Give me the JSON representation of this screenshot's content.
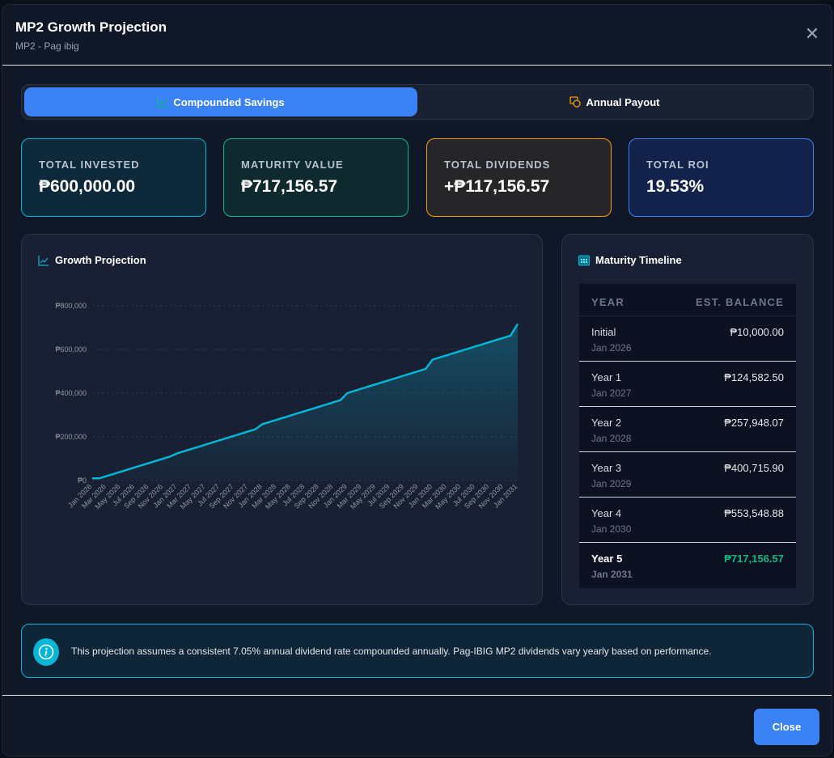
{
  "header": {
    "title": "MP2 Growth Projection",
    "subtitle": "MP2 - Pag ibig",
    "close_icon": "close-icon"
  },
  "tabs": [
    {
      "label": "Compounded Savings",
      "icon": "trending-up-icon",
      "active": true
    },
    {
      "label": "Annual Payout",
      "icon": "coins-icon",
      "active": false
    }
  ],
  "cards": [
    {
      "label": "TOTAL INVESTED",
      "value": "₱600,000.00",
      "color": "#06b6d4"
    },
    {
      "label": "MATURITY VALUE",
      "value": "₱717,156.57",
      "color": "#10b981"
    },
    {
      "label": "TOTAL DIVIDENDS",
      "value": "+₱117,156.57",
      "color": "#f59e0b"
    },
    {
      "label": "TOTAL ROI",
      "value": "19.53%",
      "color": "#3b82f6"
    }
  ],
  "chart_panel": {
    "title": "Growth Projection"
  },
  "chart_data": {
    "type": "area",
    "title": "Growth Projection",
    "ylim": [
      0,
      800000
    ],
    "y_ticks": [
      {
        "v": 0,
        "label": "₱0"
      },
      {
        "v": 200000,
        "label": "₱200,000"
      },
      {
        "v": 400000,
        "label": "₱400,000"
      },
      {
        "v": 600000,
        "label": "₱600,000"
      },
      {
        "v": 800000,
        "label": "₱800,000"
      }
    ],
    "x_labels": [
      "Jan 2026",
      "Mar 2026",
      "May 2026",
      "Jul 2026",
      "Sep 2026",
      "Nov 2026",
      "Jan 2027",
      "Mar 2027",
      "May 2027",
      "Jul 2027",
      "Sep 2027",
      "Nov 2027",
      "Jan 2028",
      "Mar 2028",
      "May 2028",
      "Jul 2028",
      "Sep 2028",
      "Nov 2028",
      "Jan 2029",
      "Mar 2029",
      "May 2029",
      "Jul 2029",
      "Sep 2029",
      "Nov 2029",
      "Jan 2030",
      "Mar 2030",
      "May 2030",
      "Jul 2030",
      "Sep 2030",
      "Nov 2030",
      "Jan 2031"
    ],
    "values": [
      10000,
      10000,
      20000,
      30000,
      40000,
      50000,
      60000,
      70000,
      80000,
      90000,
      100000,
      110000,
      124582.5,
      134582.5,
      144582.5,
      154582.5,
      164582.5,
      174582.5,
      184582.5,
      194582.5,
      204582.5,
      214582.5,
      224582.5,
      234582.5,
      257948.07,
      267948.07,
      277948.07,
      287948.07,
      297948.07,
      307948.07,
      317948.07,
      327948.07,
      337948.07,
      347948.07,
      357948.07,
      367948.07,
      400715.9,
      410715.9,
      420715.9,
      430715.9,
      440715.9,
      450715.9,
      460715.9,
      470715.9,
      480715.9,
      490715.9,
      500715.9,
      510715.9,
      553548.88,
      563548.88,
      573548.88,
      583548.88,
      593548.88,
      603548.88,
      613548.88,
      623548.88,
      633548.88,
      643548.88,
      653548.88,
      663548.88,
      717156.57
    ],
    "line_color": "#06b6d4",
    "grid": true
  },
  "timeline": {
    "title": "Maturity Timeline",
    "headers": {
      "year": "YEAR",
      "balance": "EST. BALANCE"
    },
    "rows": [
      {
        "year": "Initial",
        "date": "Jan 2026",
        "balance": "₱10,000.00"
      },
      {
        "year": "Year 1",
        "date": "Jan 2027",
        "balance": "₱124,582.50"
      },
      {
        "year": "Year 2",
        "date": "Jan 2028",
        "balance": "₱257,948.07"
      },
      {
        "year": "Year 3",
        "date": "Jan 2029",
        "balance": "₱400,715.90"
      },
      {
        "year": "Year 4",
        "date": "Jan 2030",
        "balance": "₱553,548.88"
      },
      {
        "year": "Year 5",
        "date": "Jan 2031",
        "balance": "₱717,156.57"
      }
    ]
  },
  "info": {
    "text": "This projection assumes a consistent 7.05% annual dividend rate compounded annually. Pag-IBIG MP2 dividends vary yearly based on performance."
  },
  "footer": {
    "close_label": "Close"
  }
}
